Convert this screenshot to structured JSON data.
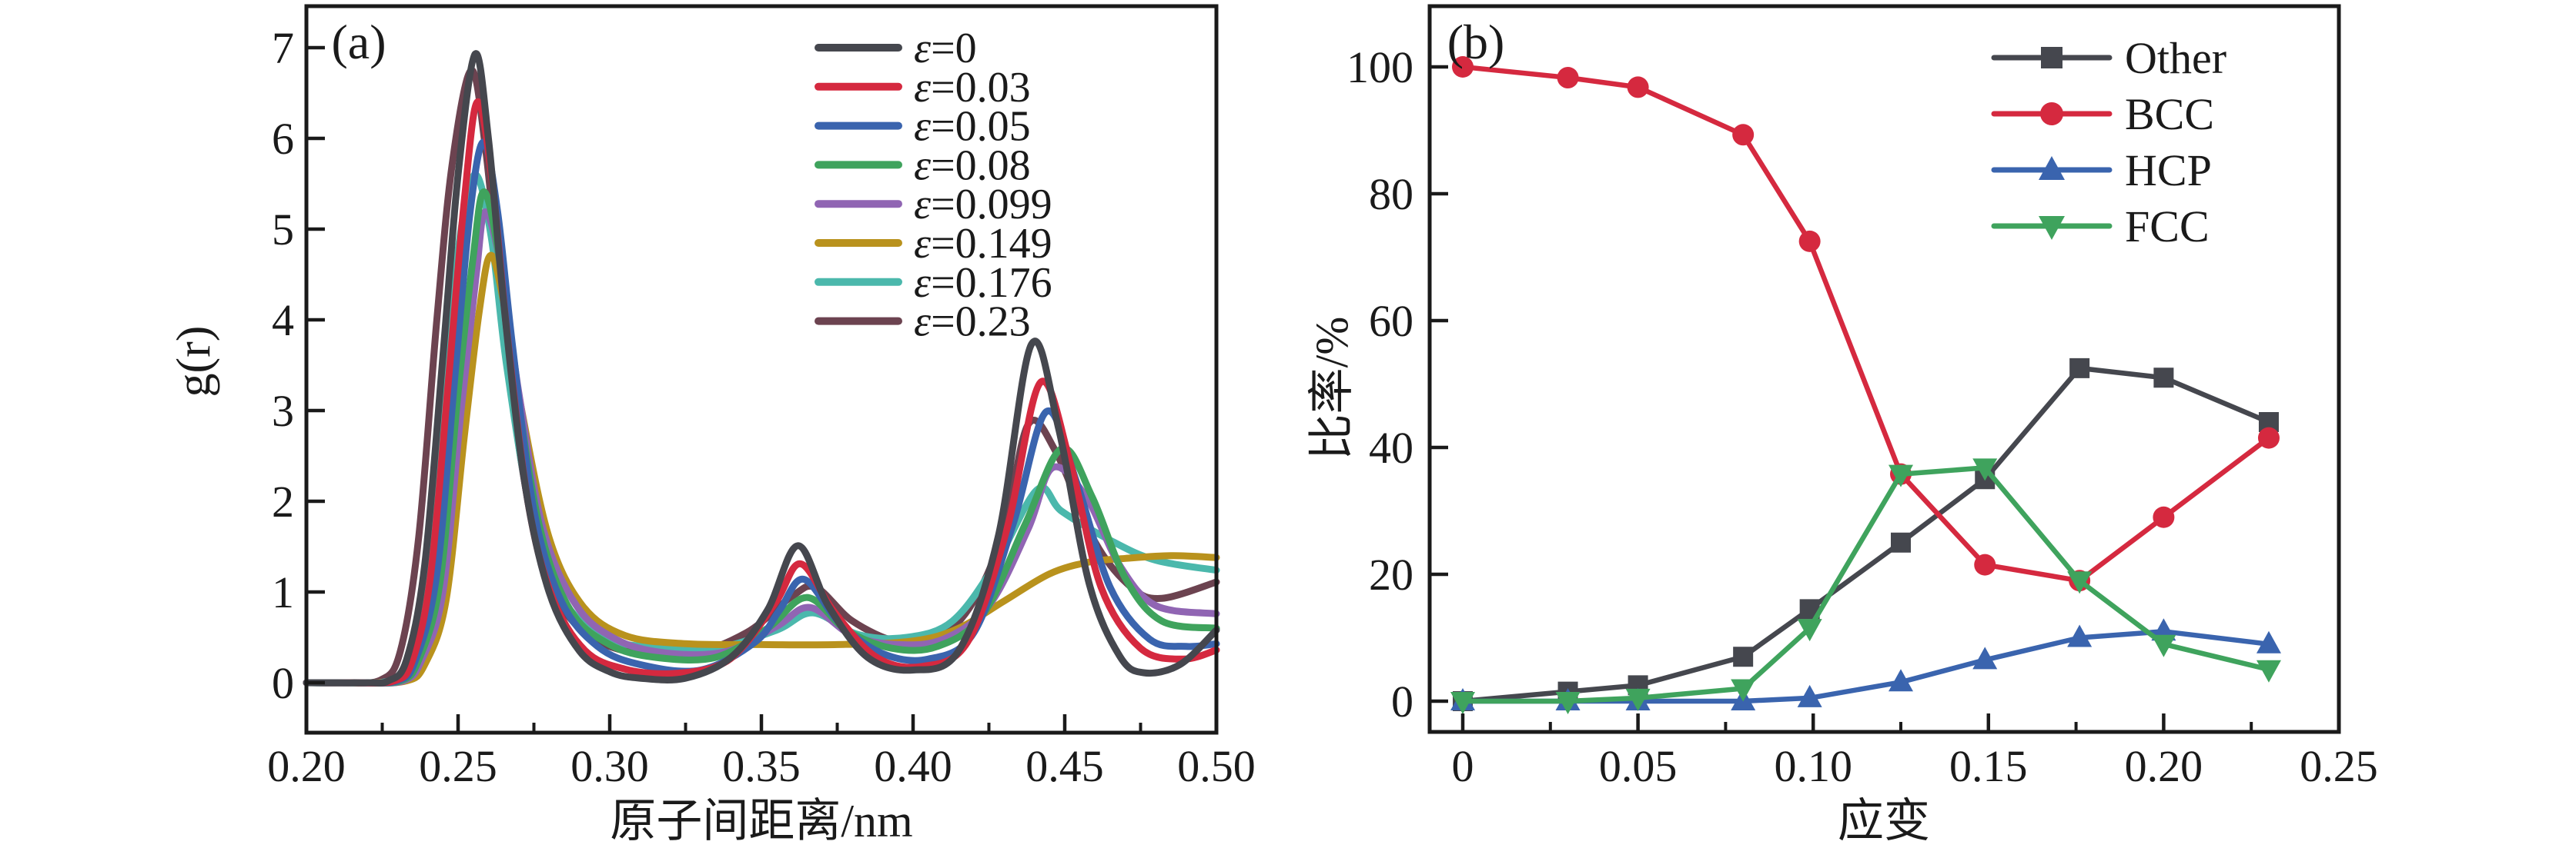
{
  "figure_type": "dual-panel scientific line chart",
  "chart_data": [
    {
      "type": "line",
      "panel_label": "(a)",
      "xlabel": "原子间距离/nm",
      "ylabel": "g(r)",
      "xlim": [
        0.2,
        0.5
      ],
      "ylim": [
        -0.55,
        7.46
      ],
      "grid": false,
      "legend_position": "upper-right-inside",
      "xticks": {
        "values": [
          0.2,
          0.25,
          0.3,
          0.35,
          0.4,
          0.45,
          0.5
        ],
        "labels": [
          "0.20",
          "0.25",
          "0.30",
          "0.35",
          "0.40",
          "0.45",
          "0.50"
        ]
      },
      "minor_xticks": [
        0.225,
        0.275,
        0.325,
        0.375,
        0.425,
        0.475
      ],
      "yticks": {
        "values": [
          0,
          1,
          2,
          3,
          4,
          5,
          6,
          7
        ],
        "labels": [
          "0",
          "1",
          "2",
          "3",
          "4",
          "5",
          "6",
          "7"
        ]
      },
      "series": [
        {
          "name": "ε=0.23",
          "color": "#6C4350",
          "points": [
            [
              0.2,
              0
            ],
            [
              0.2115,
              0
            ],
            [
              0.2245,
              0.03
            ],
            [
              0.231,
              0.35
            ],
            [
              0.237,
              1.6
            ],
            [
              0.243,
              4.0
            ],
            [
              0.248,
              5.7
            ],
            [
              0.2543,
              6.75
            ],
            [
              0.259,
              5.9
            ],
            [
              0.264,
              4.3
            ],
            [
              0.271,
              2.4
            ],
            [
              0.279,
              1.2
            ],
            [
              0.29,
              0.6
            ],
            [
              0.305,
              0.35
            ],
            [
              0.325,
              0.3
            ],
            [
              0.345,
              0.55
            ],
            [
              0.36,
              0.95
            ],
            [
              0.368,
              1.05
            ],
            [
              0.38,
              0.68
            ],
            [
              0.395,
              0.45
            ],
            [
              0.408,
              0.48
            ],
            [
              0.42,
              0.9
            ],
            [
              0.43,
              1.7
            ],
            [
              0.438,
              2.85
            ],
            [
              0.447,
              2.55
            ],
            [
              0.46,
              1.55
            ],
            [
              0.472,
              1.05
            ],
            [
              0.482,
              0.93
            ],
            [
              0.5,
              1.11
            ]
          ]
        },
        {
          "name": "ε=0.176",
          "color": "#4BB8AC",
          "points": [
            [
              0.2,
              0
            ],
            [
              0.2145,
              0
            ],
            [
              0.228,
              0.03
            ],
            [
              0.234,
              0.3
            ],
            [
              0.24,
              1.3
            ],
            [
              0.246,
              3.5
            ],
            [
              0.251,
              5.0
            ],
            [
              0.2558,
              5.6
            ],
            [
              0.261,
              4.9
            ],
            [
              0.266,
              3.5
            ],
            [
              0.274,
              1.9
            ],
            [
              0.284,
              0.95
            ],
            [
              0.298,
              0.5
            ],
            [
              0.315,
              0.39
            ],
            [
              0.335,
              0.38
            ],
            [
              0.355,
              0.58
            ],
            [
              0.367,
              0.77
            ],
            [
              0.382,
              0.53
            ],
            [
              0.398,
              0.5
            ],
            [
              0.413,
              0.68
            ],
            [
              0.427,
              1.3
            ],
            [
              0.441,
              2.13
            ],
            [
              0.449,
              1.89
            ],
            [
              0.465,
              1.57
            ],
            [
              0.48,
              1.35
            ],
            [
              0.5,
              1.24
            ]
          ]
        },
        {
          "name": "ε=0.149",
          "color": "#B9921D",
          "points": [
            [
              0.2,
              0
            ],
            [
              0.219,
              0
            ],
            [
              0.233,
              0.02
            ],
            [
              0.239,
              0.2
            ],
            [
              0.246,
              0.9
            ],
            [
              0.252,
              2.7
            ],
            [
              0.257,
              4.1
            ],
            [
              0.2607,
              4.71
            ],
            [
              0.265,
              4.2
            ],
            [
              0.271,
              3.0
            ],
            [
              0.28,
              1.6
            ],
            [
              0.291,
              0.85
            ],
            [
              0.305,
              0.52
            ],
            [
              0.325,
              0.43
            ],
            [
              0.35,
              0.42
            ],
            [
              0.375,
              0.42
            ],
            [
              0.4,
              0.46
            ],
            [
              0.415,
              0.6
            ],
            [
              0.43,
              0.9
            ],
            [
              0.445,
              1.2
            ],
            [
              0.458,
              1.33
            ],
            [
              0.47,
              1.37
            ],
            [
              0.485,
              1.4
            ],
            [
              0.5,
              1.38
            ]
          ]
        },
        {
          "name": "ε=0.099",
          "color": "#9065B3",
          "points": [
            [
              0.2,
              0
            ],
            [
              0.218,
              0
            ],
            [
              0.232,
              0.02
            ],
            [
              0.238,
              0.25
            ],
            [
              0.245,
              1.0
            ],
            [
              0.251,
              3.0
            ],
            [
              0.256,
              4.5
            ],
            [
              0.2589,
              5.19
            ],
            [
              0.264,
              4.6
            ],
            [
              0.27,
              3.2
            ],
            [
              0.278,
              1.7
            ],
            [
              0.289,
              0.85
            ],
            [
              0.302,
              0.48
            ],
            [
              0.318,
              0.33
            ],
            [
              0.338,
              0.34
            ],
            [
              0.355,
              0.62
            ],
            [
              0.366,
              0.83
            ],
            [
              0.38,
              0.52
            ],
            [
              0.395,
              0.42
            ],
            [
              0.41,
              0.48
            ],
            [
              0.425,
              0.85
            ],
            [
              0.438,
              1.7
            ],
            [
              0.446,
              2.37
            ],
            [
              0.457,
              2.05
            ],
            [
              0.468,
              1.3
            ],
            [
              0.48,
              0.85
            ],
            [
              0.5,
              0.76
            ]
          ]
        },
        {
          "name": "ε=0.08",
          "color": "#3FA35D",
          "points": [
            [
              0.2,
              0
            ],
            [
              0.217,
              0
            ],
            [
              0.231,
              0.02
            ],
            [
              0.237,
              0.25
            ],
            [
              0.244,
              1.1
            ],
            [
              0.25,
              3.2
            ],
            [
              0.255,
              4.7
            ],
            [
              0.2584,
              5.41
            ],
            [
              0.263,
              4.8
            ],
            [
              0.269,
              3.3
            ],
            [
              0.277,
              1.7
            ],
            [
              0.287,
              0.8
            ],
            [
              0.3,
              0.42
            ],
            [
              0.315,
              0.28
            ],
            [
              0.335,
              0.28
            ],
            [
              0.352,
              0.6
            ],
            [
              0.365,
              0.94
            ],
            [
              0.378,
              0.58
            ],
            [
              0.393,
              0.38
            ],
            [
              0.408,
              0.4
            ],
            [
              0.423,
              0.75
            ],
            [
              0.437,
              1.75
            ],
            [
              0.449,
              2.58
            ],
            [
              0.459,
              2.05
            ],
            [
              0.47,
              1.15
            ],
            [
              0.482,
              0.68
            ],
            [
              0.5,
              0.6
            ]
          ]
        },
        {
          "name": "ε=0.05",
          "color": "#3A64AE",
          "points": [
            [
              0.2,
              0
            ],
            [
              0.216,
              0
            ],
            [
              0.23,
              0.02
            ],
            [
              0.236,
              0.25
            ],
            [
              0.243,
              1.2
            ],
            [
              0.249,
              3.4
            ],
            [
              0.254,
              5.2
            ],
            [
              0.2584,
              5.96
            ],
            [
              0.263,
              5.2
            ],
            [
              0.268,
              3.7
            ],
            [
              0.275,
              1.9
            ],
            [
              0.284,
              0.9
            ],
            [
              0.296,
              0.4
            ],
            [
              0.31,
              0.2
            ],
            [
              0.33,
              0.14
            ],
            [
              0.348,
              0.45
            ],
            [
              0.356,
              0.8
            ],
            [
              0.364,
              1.14
            ],
            [
              0.376,
              0.65
            ],
            [
              0.39,
              0.32
            ],
            [
              0.405,
              0.26
            ],
            [
              0.42,
              0.55
            ],
            [
              0.433,
              1.75
            ],
            [
              0.444,
              2.99
            ],
            [
              0.454,
              2.2
            ],
            [
              0.465,
              1.05
            ],
            [
              0.478,
              0.48
            ],
            [
              0.49,
              0.4
            ],
            [
              0.5,
              0.43
            ]
          ]
        },
        {
          "name": "ε=0.03",
          "color": "#D5293F",
          "points": [
            [
              0.2,
              0
            ],
            [
              0.215,
              0
            ],
            [
              0.229,
              0.02
            ],
            [
              0.235,
              0.25
            ],
            [
              0.241,
              1.2
            ],
            [
              0.247,
              3.4
            ],
            [
              0.252,
              5.3
            ],
            [
              0.2563,
              6.4
            ],
            [
              0.261,
              5.6
            ],
            [
              0.266,
              3.9
            ],
            [
              0.273,
              2.0
            ],
            [
              0.281,
              0.95
            ],
            [
              0.292,
              0.35
            ],
            [
              0.305,
              0.15
            ],
            [
              0.32,
              0.1
            ],
            [
              0.335,
              0.18
            ],
            [
              0.344,
              0.4
            ],
            [
              0.355,
              0.9
            ],
            [
              0.363,
              1.31
            ],
            [
              0.374,
              0.78
            ],
            [
              0.388,
              0.28
            ],
            [
              0.403,
              0.18
            ],
            [
              0.418,
              0.45
            ],
            [
              0.431,
              1.7
            ],
            [
              0.442,
              3.31
            ],
            [
              0.452,
              2.4
            ],
            [
              0.462,
              1.05
            ],
            [
              0.475,
              0.38
            ],
            [
              0.489,
              0.26
            ],
            [
              0.5,
              0.36
            ]
          ]
        },
        {
          "name": "ε=0",
          "color": "#45474E",
          "points": [
            [
              0.2,
              0
            ],
            [
              0.21,
              0
            ],
            [
              0.22,
              0
            ],
            [
              0.227,
              0.02
            ],
            [
              0.233,
              0.25
            ],
            [
              0.239,
              1.3
            ],
            [
              0.245,
              3.6
            ],
            [
              0.25,
              5.6
            ],
            [
              0.2556,
              6.93
            ],
            [
              0.26,
              6.0
            ],
            [
              0.265,
              4.2
            ],
            [
              0.272,
              2.2
            ],
            [
              0.28,
              1.0
            ],
            [
              0.29,
              0.35
            ],
            [
              0.3,
              0.12
            ],
            [
              0.31,
              0.05
            ],
            [
              0.325,
              0.05
            ],
            [
              0.34,
              0.28
            ],
            [
              0.352,
              0.8
            ],
            [
              0.362,
              1.51
            ],
            [
              0.372,
              0.85
            ],
            [
              0.385,
              0.28
            ],
            [
              0.4,
              0.14
            ],
            [
              0.415,
              0.35
            ],
            [
              0.428,
              1.6
            ],
            [
              0.439,
              3.73
            ],
            [
              0.448,
              2.8
            ],
            [
              0.458,
              1.1
            ],
            [
              0.468,
              0.3
            ],
            [
              0.476,
              0.11
            ],
            [
              0.488,
              0.2
            ],
            [
              0.5,
              0.58
            ]
          ]
        }
      ],
      "legend_order": [
        "ε=0",
        "ε=0.03",
        "ε=0.05",
        "ε=0.08",
        "ε=0.099",
        "ε=0.149",
        "ε=0.176",
        "ε=0.23"
      ]
    },
    {
      "type": "line",
      "panel_label": "(b)",
      "xlabel": "应变",
      "ylabel": "比率/%",
      "xlim": [
        -0.0095,
        0.25
      ],
      "ylim": [
        -4.85,
        109.6
      ],
      "grid": false,
      "legend_position": "upper-right-inside",
      "xticks": {
        "values": [
          0,
          0.05,
          0.1,
          0.15,
          0.2,
          0.25
        ],
        "labels": [
          "0",
          "0.05",
          "0.10",
          "0.15",
          "0.20",
          "0.25"
        ]
      },
      "minor_xticks": [
        0.025,
        0.075,
        0.125,
        0.175,
        0.225
      ],
      "yticks": {
        "values": [
          0,
          20,
          40,
          60,
          80,
          100
        ],
        "labels": [
          "0",
          "20",
          "40",
          "60",
          "80",
          "100"
        ]
      },
      "x": [
        0,
        0.03,
        0.05,
        0.08,
        0.099,
        0.125,
        0.149,
        0.176,
        0.2,
        0.23
      ],
      "series": [
        {
          "name": "Other",
          "marker": "square",
          "color": "#45474E",
          "values": [
            0,
            1.5,
            2.5,
            7,
            14.5,
            25,
            35,
            52.5,
            51,
            44
          ]
        },
        {
          "name": "BCC",
          "marker": "circle",
          "color": "#D5293F",
          "values": [
            100,
            98.3,
            96.8,
            89.3,
            72.5,
            35.8,
            21.5,
            19,
            29,
            41.5
          ]
        },
        {
          "name": "HCP",
          "marker": "triangle-up",
          "color": "#3A64AE",
          "values": [
            0,
            0,
            0,
            0,
            0.5,
            3,
            6.5,
            10,
            11,
            9
          ]
        },
        {
          "name": "FCC",
          "marker": "triangle-down",
          "color": "#3FA35D",
          "values": [
            0,
            0,
            0.5,
            2,
            11.5,
            35.8,
            36.8,
            19,
            9,
            5
          ]
        }
      ],
      "legend_order": [
        "Other",
        "BCC",
        "HCP",
        "FCC"
      ]
    }
  ],
  "colors": {
    "axis": "#1a1a1a",
    "background": "#ffffff"
  }
}
